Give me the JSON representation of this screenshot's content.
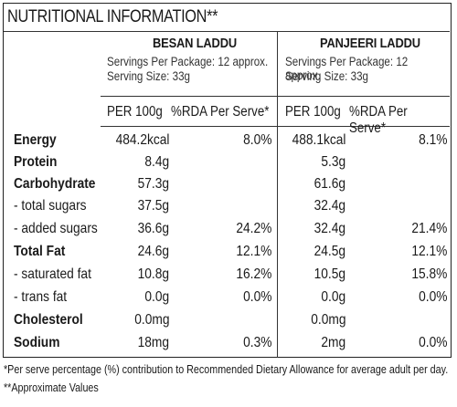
{
  "title": "NUTRITIONAL INFORMATION**",
  "products": [
    {
      "name": "BESAN LADDU",
      "servings": "Servings Per Package: 12 approx.",
      "serving_size": "Serving Size: 33g"
    },
    {
      "name": "PANJEERI LADDU",
      "servings": "Servings Per Package: 12 approx.",
      "serving_size": "Serving Size: 33g"
    }
  ],
  "column_headers": {
    "per100": "PER 100g",
    "rda": "%RDA Per Serve*"
  },
  "rows": [
    {
      "label": "Energy",
      "bold": true,
      "b_per100": "484.2kcal",
      "b_rda": "8.0%",
      "p_per100": "488.1kcal",
      "p_rda": "8.1%"
    },
    {
      "label": "Protein",
      "bold": true,
      "b_per100": "8.4g",
      "b_rda": "",
      "p_per100": "5.3g",
      "p_rda": ""
    },
    {
      "label": "Carbohydrate",
      "bold": true,
      "b_per100": "57.3g",
      "b_rda": "",
      "p_per100": "61.6g",
      "p_rda": ""
    },
    {
      "label": " - total sugars",
      "bold": false,
      "b_per100": "37.5g",
      "b_rda": "",
      "p_per100": "32.4g",
      "p_rda": ""
    },
    {
      "label": " - added sugars",
      "bold": false,
      "b_per100": "36.6g",
      "b_rda": "24.2%",
      "p_per100": "32.4g",
      "p_rda": "21.4%"
    },
    {
      "label": "Total Fat",
      "bold": true,
      "b_per100": "24.6g",
      "b_rda": "12.1%",
      "p_per100": "24.5g",
      "p_rda": "12.1%"
    },
    {
      "label": " - saturated fat",
      "bold": false,
      "b_per100": "10.8g",
      "b_rda": "16.2%",
      "p_per100": "10.5g",
      "p_rda": "15.8%"
    },
    {
      "label": " - trans fat",
      "bold": false,
      "b_per100": "0.0g",
      "b_rda": "0.0%",
      "p_per100": "0.0g",
      "p_rda": "0.0%"
    },
    {
      "label": "Cholesterol",
      "bold": true,
      "b_per100": "0.0mg",
      "b_rda": "",
      "p_per100": "0.0mg",
      "p_rda": ""
    },
    {
      "label": "Sodium",
      "bold": true,
      "b_per100": "18mg",
      "b_rda": "0.3%",
      "p_per100": "2mg",
      "p_rda": "0.0%"
    }
  ],
  "footnotes": [
    "*Per serve percentage (%) contribution to Recommended Dietary Allowance for average adult per day.",
    "**Approximate Values"
  ]
}
